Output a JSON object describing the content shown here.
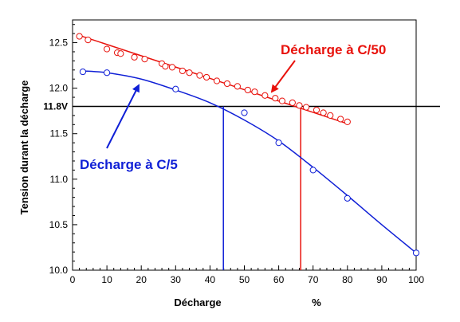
{
  "chart_data": {
    "type": "scatter",
    "xlabel": "Décharge",
    "xunit": "%",
    "ylabel": "Tension durant la décharge",
    "xlim": [
      0,
      100
    ],
    "ylim": [
      10.0,
      12.75
    ],
    "xticks": [
      "0",
      "10",
      "20",
      "30",
      "40",
      "50",
      "60",
      "70",
      "80",
      "90",
      "100"
    ],
    "yticks": [
      "10.0",
      "10.5",
      "11.0",
      "11.5",
      "12.0",
      "12.5"
    ],
    "grid": false,
    "reference_line": {
      "y": 11.8,
      "label": "11.8V",
      "color": "#000000"
    },
    "series": [
      {
        "name": "Décharge à C/50",
        "color": "#e8120c",
        "points": [
          [
            2,
            12.57
          ],
          [
            4.5,
            12.53
          ],
          [
            10,
            12.43
          ],
          [
            13,
            12.39
          ],
          [
            14,
            12.38
          ],
          [
            18,
            12.34
          ],
          [
            21,
            12.32
          ],
          [
            26,
            12.27
          ],
          [
            27,
            12.24
          ],
          [
            29,
            12.23
          ],
          [
            32,
            12.19
          ],
          [
            34,
            12.17
          ],
          [
            37,
            12.14
          ],
          [
            39,
            12.12
          ],
          [
            42,
            12.08
          ],
          [
            45,
            12.05
          ],
          [
            48,
            12.02
          ],
          [
            51,
            11.98
          ],
          [
            53,
            11.96
          ],
          [
            56,
            11.92
          ],
          [
            59,
            11.89
          ],
          [
            61,
            11.86
          ],
          [
            64,
            11.84
          ],
          [
            66,
            11.81
          ],
          [
            68,
            11.79
          ],
          [
            71,
            11.76
          ],
          [
            73,
            11.73
          ],
          [
            75,
            11.7
          ],
          [
            78,
            11.66
          ],
          [
            80,
            11.63
          ]
        ],
        "fit_line": [
          [
            2,
            12.58
          ],
          [
            80,
            11.61
          ]
        ],
        "cutoff_x": 66.4
      },
      {
        "name": "Décharge à C/5",
        "color": "#0f1fd6",
        "points": [
          [
            3,
            12.18
          ],
          [
            10,
            12.17
          ],
          [
            30,
            11.99
          ],
          [
            50,
            11.73
          ],
          [
            60,
            11.4
          ],
          [
            70,
            11.1
          ],
          [
            80,
            10.79
          ],
          [
            100,
            10.19
          ]
        ],
        "curve": [
          [
            3,
            12.19
          ],
          [
            10,
            12.17
          ],
          [
            20,
            12.1
          ],
          [
            30,
            11.98
          ],
          [
            40,
            11.84
          ],
          [
            50,
            11.65
          ],
          [
            60,
            11.42
          ],
          [
            70,
            11.13
          ],
          [
            80,
            10.82
          ],
          [
            90,
            10.5
          ],
          [
            100,
            10.19
          ]
        ],
        "cutoff_x": 43.9
      }
    ],
    "annotations": [
      {
        "text": "Décharge à C/50",
        "color": "#e8120c"
      },
      {
        "text": "Décharge à C/5",
        "color": "#0f1fd6"
      }
    ]
  }
}
